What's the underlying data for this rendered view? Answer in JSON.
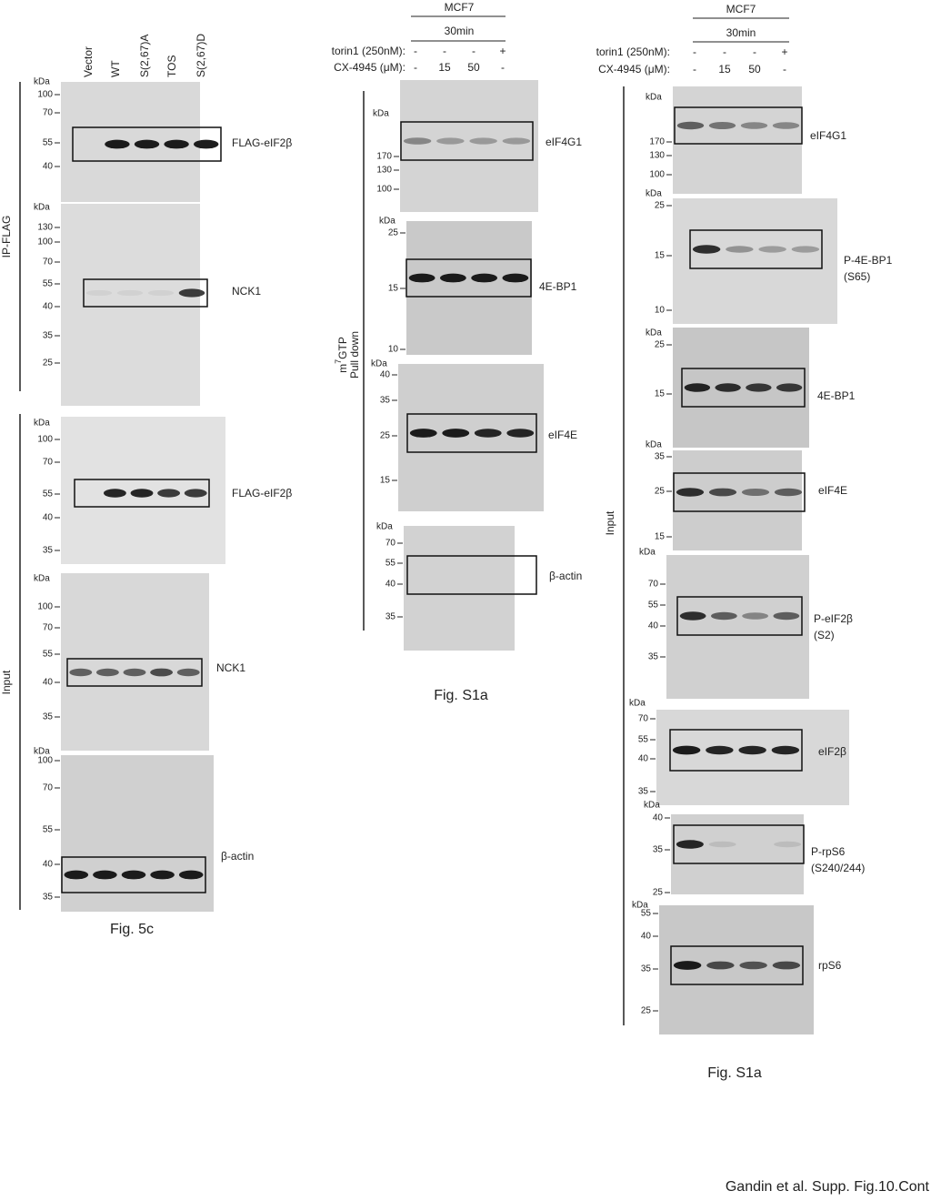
{
  "panels": [
    {
      "lanes": [
        "Vector",
        "WT",
        "S(2,67)A",
        "TOS",
        "S(2,67)D"
      ],
      "groups": [
        {
          "label": "IP-FLAG"
        },
        {
          "label": "Input"
        }
      ],
      "blots": [
        {
          "unit": "kDa",
          "markers": [
            "100",
            "70",
            "55",
            "40"
          ],
          "target": [
            "FLAG-eIF2β"
          ]
        },
        {
          "unit": "kDa",
          "markers": [
            "130",
            "100",
            "70",
            "55",
            "40",
            "35",
            "25"
          ],
          "target": [
            "NCK1"
          ]
        },
        {
          "unit": "kDa",
          "markers": [
            "100",
            "70",
            "55",
            "40",
            "35"
          ],
          "target": [
            "FLAG-eIF2β"
          ]
        },
        {
          "unit": "kDa",
          "markers": [
            "100",
            "70",
            "55",
            "40",
            "35"
          ],
          "target": [
            "NCK1"
          ]
        },
        {
          "unit": "kDa",
          "markers": [
            "100",
            "70",
            "55",
            "40",
            "35"
          ],
          "target": [
            "β-actin"
          ]
        }
      ],
      "caption": "Fig. 5c"
    },
    {
      "header": {
        "cell_line": "MCF7",
        "time": "30min",
        "rows": [
          {
            "label": "torin1 (250nM):",
            "values": [
              "-",
              "-",
              "-",
              "+"
            ]
          },
          {
            "label": "CX-4945 (μM):",
            "values": [
              "-",
              "15",
              "50",
              "-"
            ]
          }
        ]
      },
      "groups": [
        {
          "label": {
            "base": "m",
            "sup": "7",
            "rest": "GTP",
            "line2": "Pull down"
          }
        }
      ],
      "blots": [
        {
          "unit": "kDa",
          "markers": [
            "170",
            "130",
            "100"
          ],
          "target": [
            "eIF4G1"
          ]
        },
        {
          "unit": "kDa",
          "markers": [
            "25",
            "15",
            "10"
          ],
          "target": [
            "4E-BP1"
          ]
        },
        {
          "unit": "kDa",
          "markers": [
            "40",
            "35",
            "25",
            "15"
          ],
          "target": [
            "eIF4E"
          ]
        },
        {
          "unit": "kDa",
          "markers": [
            "70",
            "55",
            "40",
            "35"
          ],
          "target": [
            "β-actin"
          ]
        }
      ],
      "caption": "Fig. S1a"
    },
    {
      "header": {
        "cell_line": "MCF7",
        "time": "30min",
        "rows": [
          {
            "label": "torin1 (250nM):",
            "values": [
              "-",
              "-",
              "-",
              "+"
            ]
          },
          {
            "label": "CX-4945 (μM):",
            "values": [
              "-",
              "15",
              "50",
              "-"
            ]
          }
        ]
      },
      "groups": [
        {
          "label": "Input"
        }
      ],
      "blots": [
        {
          "unit": "kDa",
          "markers": [
            "170",
            "130",
            "100"
          ],
          "target": [
            "eIF4G1"
          ]
        },
        {
          "unit": "kDa",
          "markers": [
            "25",
            "15",
            "10"
          ],
          "target": [
            "P-4E-BP1",
            "(S65)"
          ]
        },
        {
          "unit": "kDa",
          "markers": [
            "25",
            "15"
          ],
          "target": [
            "4E-BP1"
          ]
        },
        {
          "unit": "kDa",
          "markers": [
            "35",
            "25",
            "15"
          ],
          "target": [
            "eIF4E"
          ]
        },
        {
          "unit": "kDa",
          "markers": [
            "70",
            "55",
            "40",
            "35"
          ],
          "target": [
            "P-eIF2β",
            "(S2)"
          ]
        },
        {
          "unit": "kDa",
          "markers": [
            "70",
            "55",
            "40",
            "35"
          ],
          "target": [
            "eIF2β"
          ]
        },
        {
          "unit": "kDa",
          "markers": [
            "40",
            "35",
            "25"
          ],
          "target": [
            "P-rpS6",
            "(S240/244)"
          ]
        },
        {
          "unit": "kDa",
          "markers": [
            "55",
            "40",
            "35",
            "25"
          ],
          "target": [
            "rpS6"
          ]
        }
      ],
      "caption": "Fig. S1a"
    }
  ],
  "footer": "Gandin et al. Supp. Fig.10.Cont"
}
